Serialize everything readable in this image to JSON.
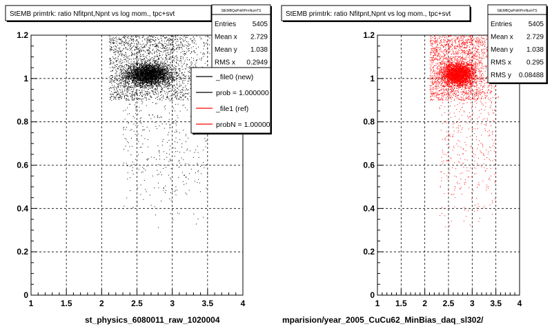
{
  "chart_data": [
    {
      "type": "scatter",
      "title": "StEMB primtrk: ratio Nfitpnt,Npnt vs log mom., tpc+svt",
      "xlim": [
        1,
        4
      ],
      "ylim": [
        0,
        1.2
      ],
      "x_ticks": [
        "1",
        "1.5",
        "2",
        "2.5",
        "3",
        "3.5",
        "4"
      ],
      "y_ticks": [
        "0",
        "0.2",
        "0.4",
        "0.6",
        "0.8",
        "1",
        "1.2"
      ],
      "grid": true,
      "marker_color": "#000000",
      "xlabel": "st_physics_6080011_raw_1020004",
      "distribution": {
        "x_range": [
          2.05,
          3.85
        ],
        "x_center": 2.65,
        "y_core_center": 1.02,
        "y_band_range": [
          0.9,
          1.2
        ],
        "y_tail_range": [
          0.3,
          0.9
        ]
      },
      "stats": {
        "header": "StEMBQaPrkRPrnNumTS",
        "rows": [
          {
            "label": "Entries",
            "value": "5405"
          },
          {
            "label": "Mean x",
            "value": "2.729"
          },
          {
            "label": "Mean y",
            "value": "1.038"
          },
          {
            "label": "RMS x",
            "value": "0.2949"
          }
        ]
      },
      "legend": {
        "placement": "top-right",
        "entries": [
          {
            "label": "_file0 (new)",
            "color": "#000000"
          },
          {
            "label": "prob = 1.000000",
            "color": "#000000"
          },
          {
            "label": "_file1 (ref)",
            "color": "#ff0000"
          },
          {
            "label": "probN = 1.000000",
            "color": "#ff0000"
          }
        ]
      }
    },
    {
      "type": "scatter",
      "title": "StEMB primtrk: ratio Nfitpnt,Npnt vs log mom., tpc+svt",
      "xlim": [
        1,
        4
      ],
      "ylim": [
        0,
        1.2
      ],
      "x_ticks": [
        "1",
        "1.5",
        "2",
        "2.5",
        "3",
        "3.5",
        "4"
      ],
      "y_ticks": [
        "0",
        "0.2",
        "0.4",
        "0.6",
        "0.8",
        "1",
        "1.2"
      ],
      "grid": true,
      "marker_color": "#ff0000",
      "xlabel": "mparision/year_2005_CuCu62_MinBias_daq_sl302/",
      "distribution": {
        "x_range": [
          2.05,
          3.85
        ],
        "x_center": 2.7,
        "y_core_center": 1.02,
        "y_band_range": [
          0.9,
          1.2
        ],
        "y_tail_range": [
          0.3,
          0.9
        ]
      },
      "stats": {
        "header": "StEMBQaPrkRPrnNumTS",
        "rows": [
          {
            "label": "Entries",
            "value": "5405"
          },
          {
            "label": "Mean x",
            "value": "2.729"
          },
          {
            "label": "Mean y",
            "value": "1.038"
          },
          {
            "label": "RMS x",
            "value": "0.295"
          },
          {
            "label": "RMS y",
            "value": "0.08488"
          }
        ]
      }
    }
  ]
}
